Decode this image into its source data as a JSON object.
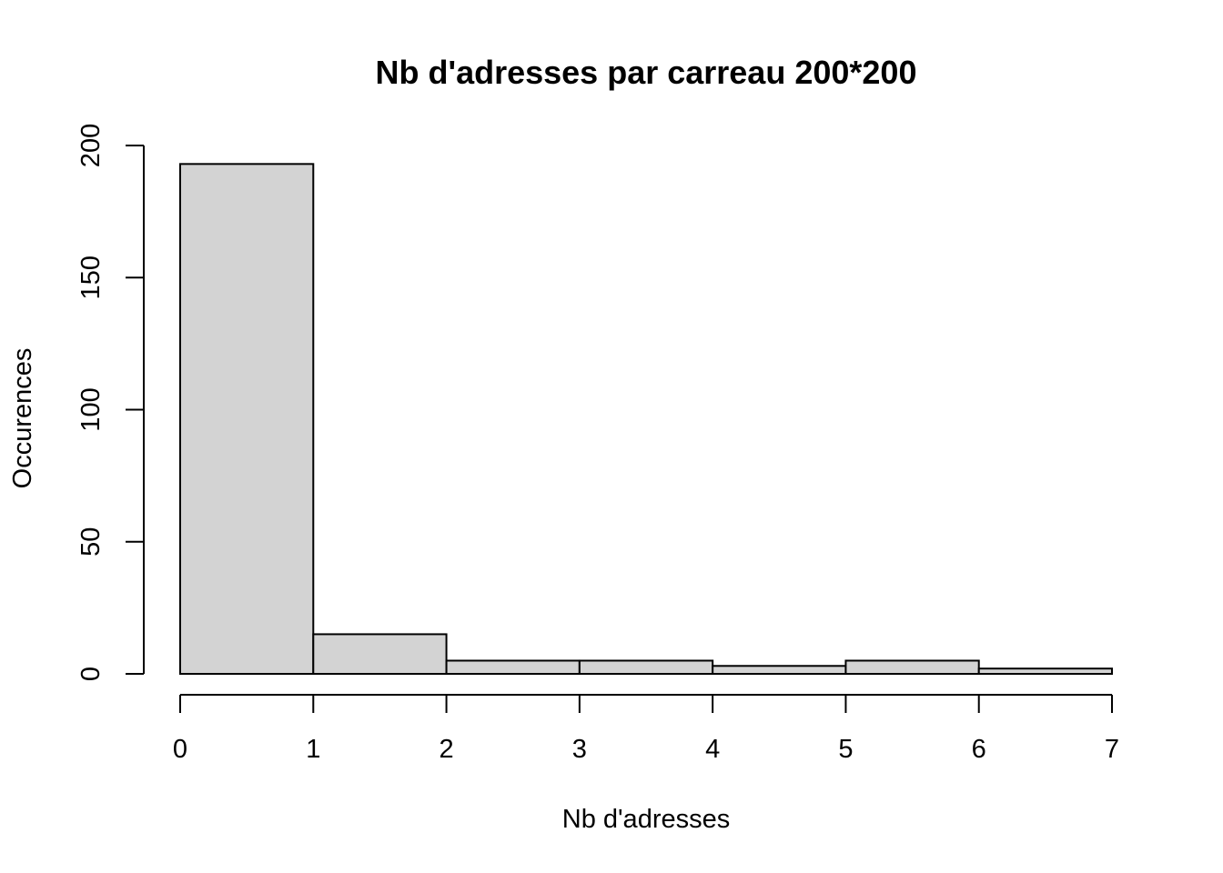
{
  "chart_data": {
    "type": "bar",
    "title": "Nb d'adresses par carreau 200*200",
    "xlabel": "Nb d'adresses",
    "ylabel": "Occurences",
    "breaks": [
      0,
      1,
      2,
      3,
      4,
      5,
      6,
      7
    ],
    "categories": [
      "0-1",
      "1-2",
      "2-3",
      "3-4",
      "4-5",
      "5-6",
      "6-7"
    ],
    "values": [
      193,
      15,
      5,
      5,
      3,
      5,
      2
    ],
    "xlim": [
      0,
      7
    ],
    "ylim": [
      0,
      200
    ],
    "x_ticks": [
      "0",
      "1",
      "2",
      "3",
      "4",
      "5",
      "6",
      "7"
    ],
    "y_ticks": [
      "0",
      "50",
      "100",
      "150",
      "200"
    ],
    "bar_color": "#d3d3d3",
    "edge_color": "#000000",
    "grid": false
  }
}
